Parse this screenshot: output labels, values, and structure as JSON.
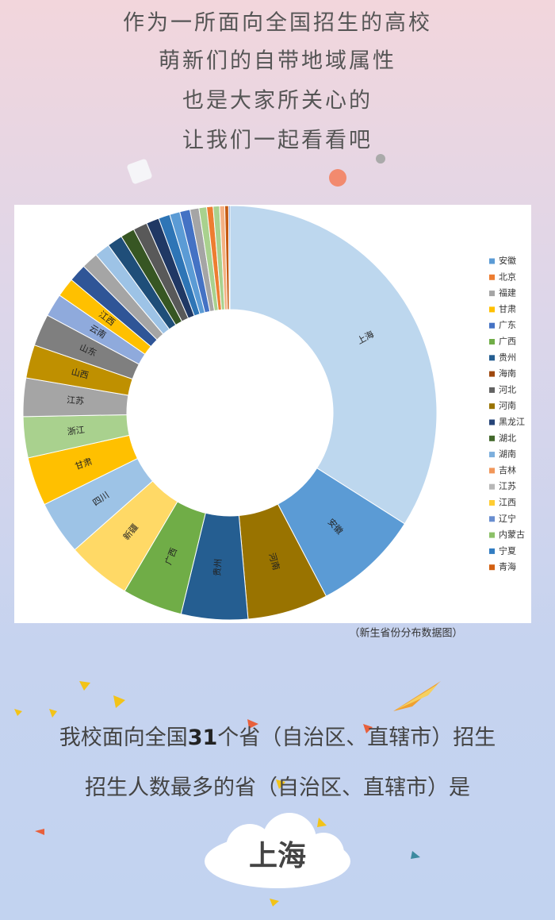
{
  "intro": [
    "作为一所面向全国招生的高校",
    "萌新们的自带地域属性",
    "也是大家所关心的",
    "让我们一起看看吧"
  ],
  "chart_data": {
    "type": "donut",
    "categories": [
      "上海",
      "安徽",
      "河南",
      "贵州",
      "广西",
      "新疆",
      "四川",
      "甘肃",
      "浙江",
      "江苏",
      "山西",
      "山东",
      "云南",
      "江西",
      null,
      null,
      null,
      null,
      null,
      null,
      null,
      null,
      null,
      null,
      null,
      null,
      null,
      null,
      null,
      null,
      null
    ],
    "values": [
      34,
      8.3,
      6.3,
      5.2,
      4.7,
      5,
      4.2,
      3.8,
      3.2,
      3.0,
      2.6,
      2.5,
      1.8,
      1.5,
      1.4,
      1.3,
      1.2,
      1.2,
      1.1,
      1.1,
      1.0,
      0.9,
      0.8,
      0.8,
      0.7,
      0.6,
      0.5,
      0.5,
      0.4,
      0.3,
      0.1
    ],
    "colors": [
      "#bdd7ee",
      "#5b9bd5",
      "#997300",
      "#255e91",
      "#70ad47",
      "#ffd966",
      "#9dc3e6",
      "#ffc000",
      "#a9d18e",
      "#a5a5a5",
      "#bf9000",
      "#7f7f7f",
      "#8faadc",
      "#ffc000",
      "#2f5597",
      "#a5a5a5",
      "#9dc3e6",
      "#1f4e79",
      "#375623",
      "#595959",
      "#203864",
      "#2e75b6",
      "#5b9bd5",
      "#4472c4",
      "#a5a5a5",
      "#a9d18e",
      "#ed7d31",
      "#a9d18e",
      "#f4b183",
      "#c55a11",
      "#4472c4"
    ],
    "legend": [
      {
        "name": "安徽",
        "color": "#5b9bd5"
      },
      {
        "name": "北京",
        "color": "#ed7d31"
      },
      {
        "name": "福建",
        "color": "#a5a5a5"
      },
      {
        "name": "甘肃",
        "color": "#ffc000"
      },
      {
        "name": "广东",
        "color": "#4472c4"
      },
      {
        "name": "广西",
        "color": "#70ad47"
      },
      {
        "name": "贵州",
        "color": "#255e91"
      },
      {
        "name": "海南",
        "color": "#9e480e"
      },
      {
        "name": "河北",
        "color": "#636363"
      },
      {
        "name": "河南",
        "color": "#997300"
      },
      {
        "name": "黑龙江",
        "color": "#264478"
      },
      {
        "name": "湖北",
        "color": "#43682b"
      },
      {
        "name": "湖南",
        "color": "#7cafdd"
      },
      {
        "name": "吉林",
        "color": "#f1975a"
      },
      {
        "name": "江苏",
        "color": "#b7b7b7"
      },
      {
        "name": "江西",
        "color": "#ffcd33"
      },
      {
        "name": "辽宁",
        "color": "#698ed0"
      },
      {
        "name": "内蒙古",
        "color": "#8cc168"
      },
      {
        "name": "宁夏",
        "color": "#327dc2"
      },
      {
        "name": "青海",
        "color": "#d26012"
      }
    ]
  },
  "caption": "（新生省份分布数据图）",
  "summary": [
    [
      "我校面向全国",
      "31",
      "个省（自治区、直辖市）招生"
    ],
    [
      "招生人数最多的省（自治区、直辖市）是"
    ]
  ],
  "highlight": "上海"
}
